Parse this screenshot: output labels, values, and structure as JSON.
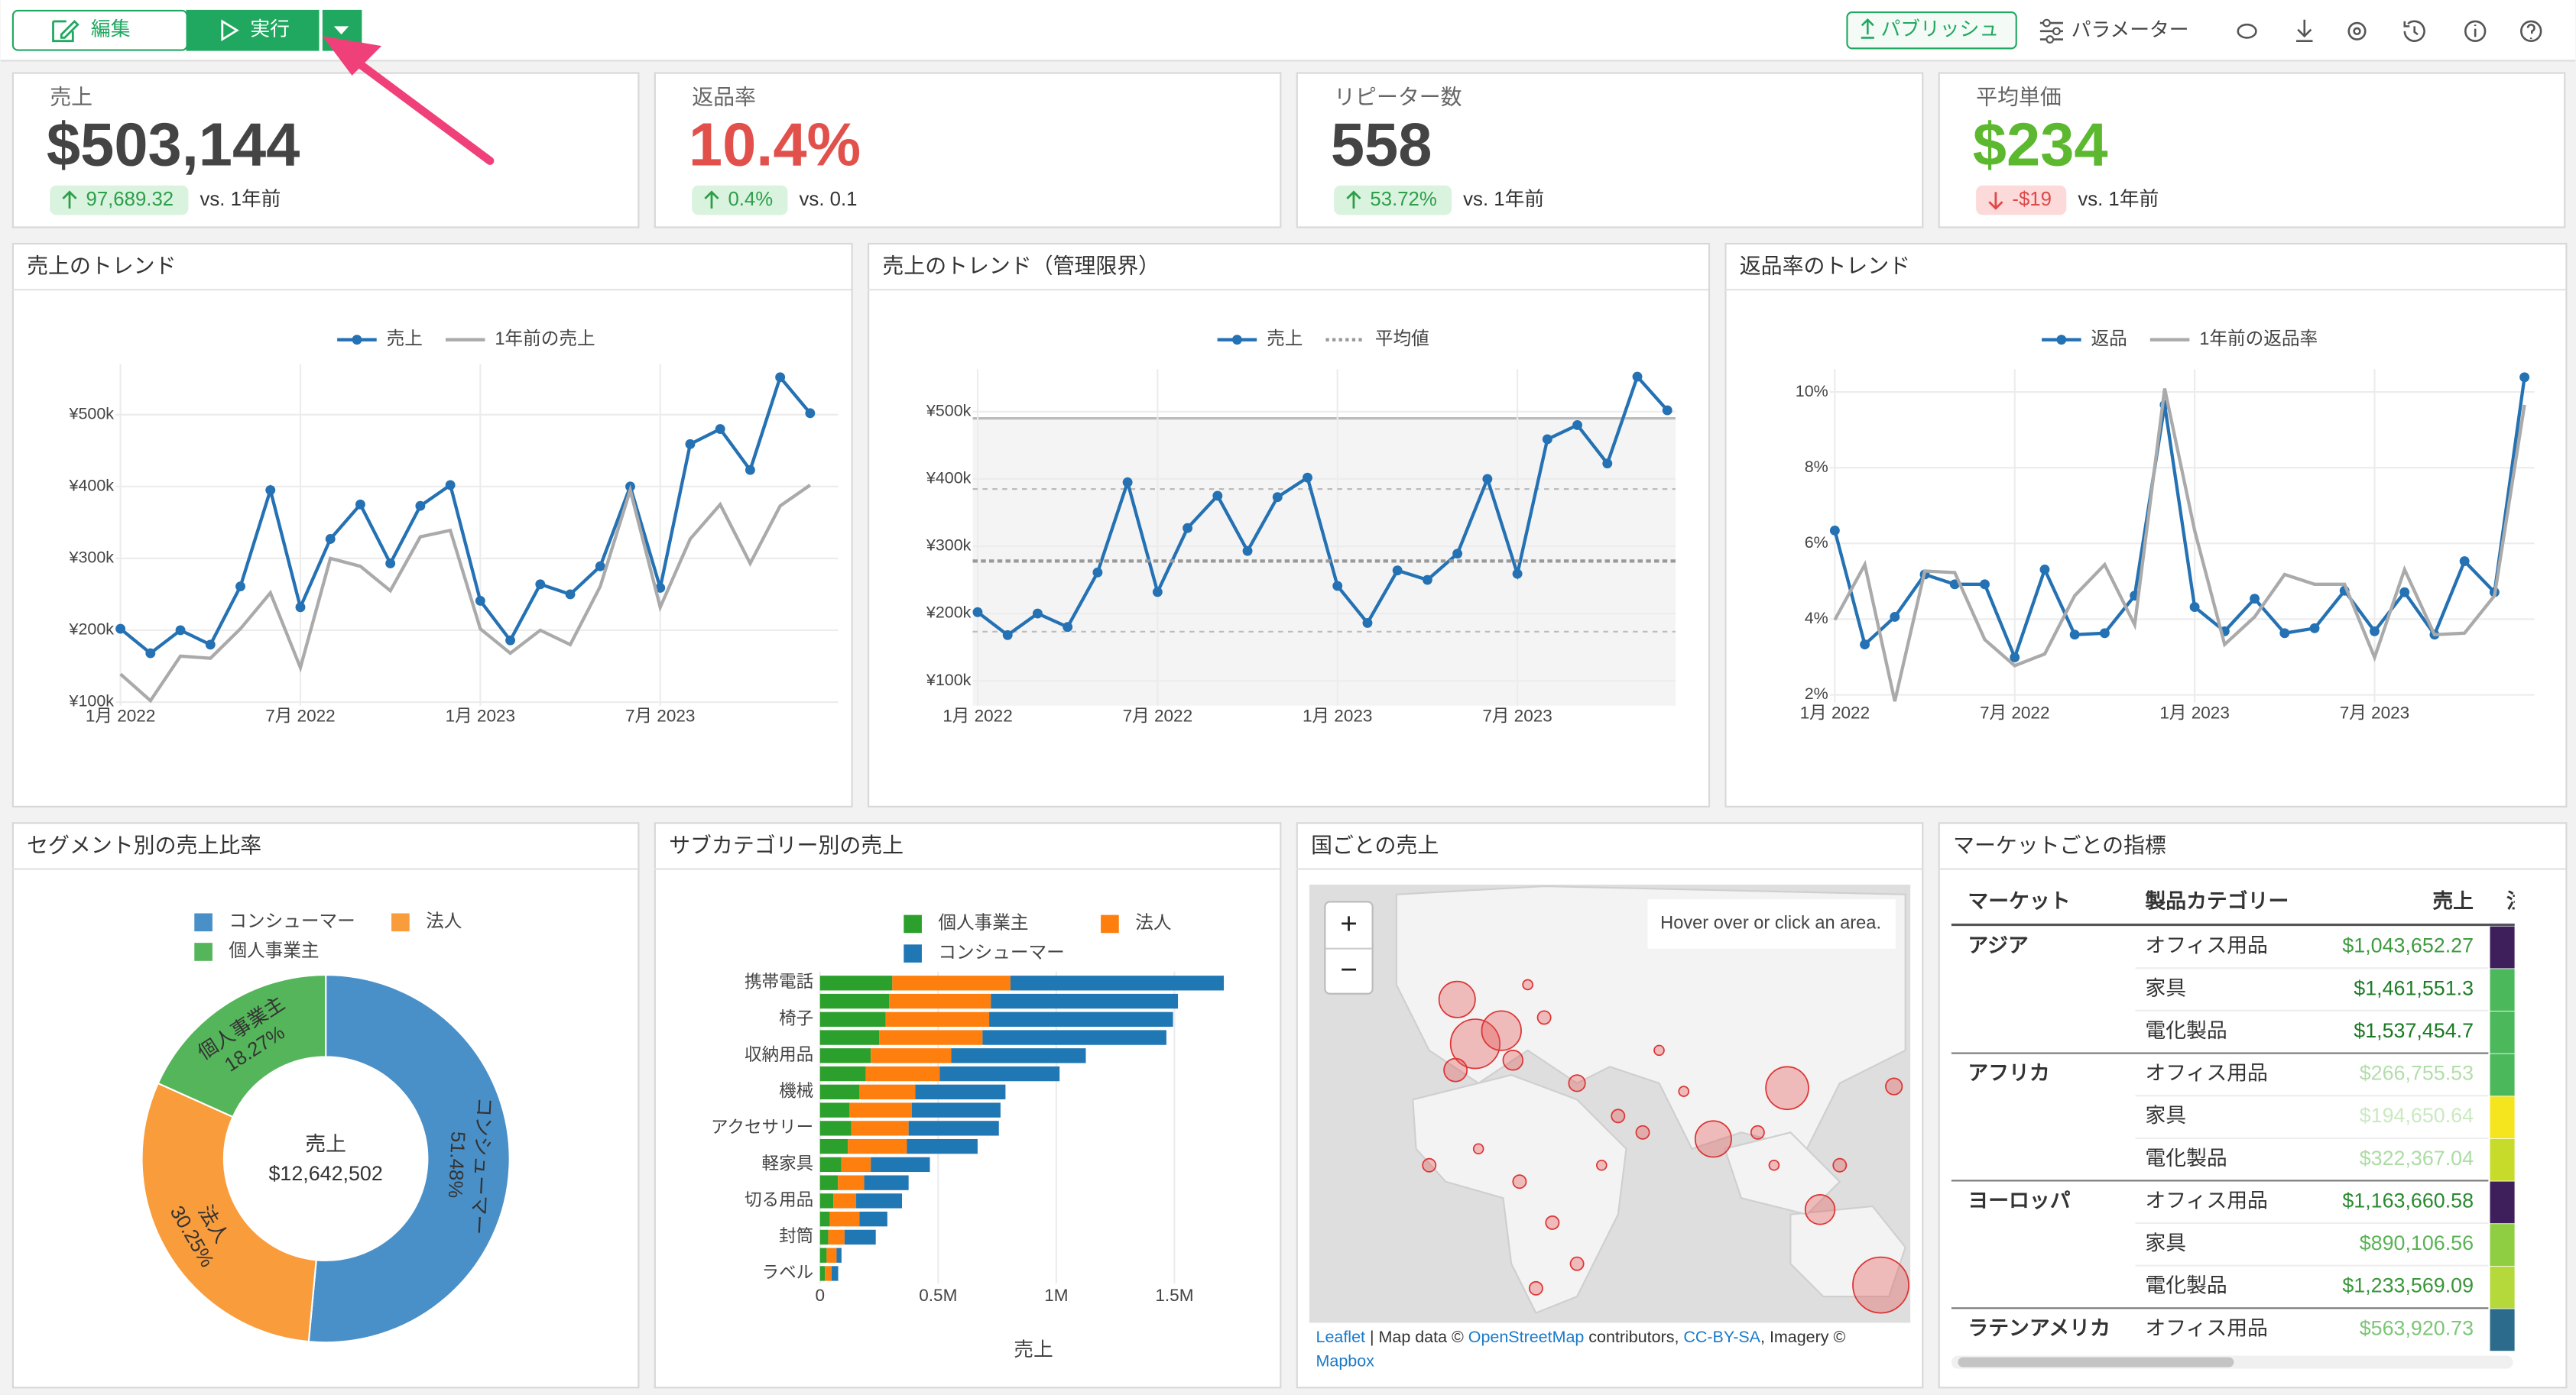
{
  "toolbar": {
    "edit": "編集",
    "run": "実行",
    "publish": "パブリッシュ",
    "parameters": "パラメーター"
  },
  "kpis": [
    {
      "title": "売上",
      "value": "$503,144",
      "color": "#444444",
      "change": "97,689.32",
      "direction": "up",
      "compare": "vs. 1年前"
    },
    {
      "title": "返品率",
      "value": "10.4%",
      "color": "#e2504c",
      "change": "0.4%",
      "direction": "up",
      "compare": "vs. 0.1"
    },
    {
      "title": "リピーター数",
      "value": "558",
      "color": "#444444",
      "change": "53.72%",
      "direction": "up",
      "compare": "vs. 1年前"
    },
    {
      "title": "平均単価",
      "value": "$234",
      "color": "#5cb82e",
      "change": "-$19",
      "direction": "down",
      "compare": "vs. 1年前"
    }
  ],
  "chart_data": [
    {
      "type": "line",
      "title": "売上のトレンド",
      "x": [
        "2022-01",
        "2022-02",
        "2022-03",
        "2022-04",
        "2022-05",
        "2022-06",
        "2022-07",
        "2022-08",
        "2022-09",
        "2022-10",
        "2022-11",
        "2022-12",
        "2023-01",
        "2023-02",
        "2023-03",
        "2023-04",
        "2023-05",
        "2023-06",
        "2023-07",
        "2023-08",
        "2023-09",
        "2023-10",
        "2023-11",
        "2023-12"
      ],
      "xticks": [
        {
          "value": "2022-01",
          "label": "1月 2022"
        },
        {
          "value": "2022-07",
          "label": "7月 2022"
        },
        {
          "value": "2023-01",
          "label": "1月 2023"
        },
        {
          "value": "2023-07",
          "label": "7月 2023"
        }
      ],
      "ylim": [
        95000,
        570000
      ],
      "yticks": [
        {
          "value": 100000,
          "label": "¥100k"
        },
        {
          "value": 200000,
          "label": "¥200k"
        },
        {
          "value": 300000,
          "label": "¥300k"
        },
        {
          "value": 400000,
          "label": "¥400k"
        },
        {
          "value": 500000,
          "label": "¥500k"
        }
      ],
      "grid": true,
      "series": [
        {
          "name": "売上",
          "color": "#2471b3",
          "markers": true,
          "values": [
            202000,
            168000,
            200000,
            180000,
            261000,
            395000,
            232000,
            327000,
            375000,
            293000,
            373000,
            402000,
            241000,
            186000,
            264000,
            250000,
            289000,
            400000,
            259000,
            459000,
            480000,
            423000,
            552000,
            502000
          ]
        },
        {
          "name": "1年前の売上",
          "color": "#aaaaaa",
          "markers": false,
          "values": [
            139000,
            102000,
            164000,
            161000,
            202000,
            252000,
            148000,
            300000,
            289000,
            255000,
            330000,
            339000,
            202000,
            168000,
            200000,
            180000,
            261000,
            395000,
            232000,
            327000,
            375000,
            293000,
            373000,
            402000
          ]
        }
      ]
    },
    {
      "type": "line",
      "title": "売上のトレンド（管理限界）",
      "x": [
        "2022-01",
        "2022-02",
        "2022-03",
        "2022-04",
        "2022-05",
        "2022-06",
        "2022-07",
        "2022-08",
        "2022-09",
        "2022-10",
        "2022-11",
        "2022-12",
        "2023-01",
        "2023-02",
        "2023-03",
        "2023-04",
        "2023-05",
        "2023-06",
        "2023-07",
        "2023-08",
        "2023-09",
        "2023-10",
        "2023-11",
        "2023-12"
      ],
      "xticks": [
        {
          "value": "2022-01",
          "label": "1月 2022"
        },
        {
          "value": "2022-07",
          "label": "7月 2022"
        },
        {
          "value": "2023-01",
          "label": "1月 2023"
        },
        {
          "value": "2023-07",
          "label": "7月 2023"
        }
      ],
      "ylim": [
        63000,
        563000
      ],
      "yticks": [
        {
          "value": 100000,
          "label": "¥100k"
        },
        {
          "value": 200000,
          "label": "¥200k"
        },
        {
          "value": 300000,
          "label": "¥300k"
        },
        {
          "value": 400000,
          "label": "¥400k"
        },
        {
          "value": 500000,
          "label": "¥500k"
        }
      ],
      "grid": true,
      "band": [
        63000,
        490000
      ],
      "control_lines": [
        173000,
        385000
      ],
      "series": [
        {
          "name": "売上",
          "color": "#2471b3",
          "markers": true,
          "values": [
            202000,
            168000,
            200000,
            180000,
            261000,
            395000,
            232000,
            327000,
            375000,
            293000,
            373000,
            402000,
            241000,
            186000,
            264000,
            250000,
            289000,
            400000,
            259000,
            459000,
            480000,
            423000,
            552000,
            502000
          ]
        },
        {
          "name": "平均値",
          "color": "#999999",
          "dash": true,
          "value": 278000
        }
      ]
    },
    {
      "type": "line",
      "title": "返品率のトレンド",
      "x": [
        "2022-01",
        "2022-02",
        "2022-03",
        "2022-04",
        "2022-05",
        "2022-06",
        "2022-07",
        "2022-08",
        "2022-09",
        "2022-10",
        "2022-11",
        "2022-12",
        "2023-01",
        "2023-02",
        "2023-03",
        "2023-04",
        "2023-05",
        "2023-06",
        "2023-07",
        "2023-08",
        "2023-09",
        "2023-10",
        "2023-11",
        "2023-12"
      ],
      "xticks": [
        {
          "value": "2022-01",
          "label": "1月 2022"
        },
        {
          "value": "2022-07",
          "label": "7月 2022"
        },
        {
          "value": "2023-01",
          "label": "1月 2023"
        },
        {
          "value": "2023-07",
          "label": "7月 2023"
        }
      ],
      "ylim": [
        1.8,
        10.6
      ],
      "yticks": [
        {
          "value": 2,
          "label": "2%"
        },
        {
          "value": 4,
          "label": "4%"
        },
        {
          "value": 6,
          "label": "6%"
        },
        {
          "value": 8,
          "label": "8%"
        },
        {
          "value": 10,
          "label": "10%"
        }
      ],
      "grid": true,
      "series": [
        {
          "name": "返品",
          "color": "#2471b3",
          "markers": true,
          "values": [
            6.34,
            3.33,
            4.06,
            5.18,
            4.92,
            4.92,
            2.99,
            5.31,
            3.59,
            3.63,
            4.62,
            9.66,
            4.32,
            3.68,
            4.54,
            3.63,
            3.76,
            4.75,
            3.68,
            4.71,
            3.59,
            5.53,
            4.71,
            10.39
          ]
        },
        {
          "name": "1年前の返品率",
          "color": "#aaaaaa",
          "markers": false,
          "values": [
            3.98,
            5.44,
            1.83,
            5.27,
            5.23,
            3.46,
            2.77,
            3.08,
            4.62,
            5.44,
            3.85,
            10.09,
            6.34,
            3.33,
            4.06,
            5.18,
            4.92,
            4.92,
            2.99,
            5.31,
            3.59,
            3.63,
            4.62,
            9.66
          ]
        }
      ]
    },
    {
      "type": "pie",
      "title": "セグメント別の売上比率",
      "categories": [
        "コンシューマー",
        "法人",
        "個人事業主"
      ],
      "values": [
        51.48,
        30.25,
        18.27
      ],
      "value_labels": [
        "51.48%",
        "30.25%",
        "18.27%"
      ],
      "colors": [
        "#4a90c8",
        "#f99c3c",
        "#55b55a"
      ],
      "center_label": "売上",
      "center_value": "$12,642,502"
    },
    {
      "type": "barh",
      "title": "サブカテゴリー別の売上",
      "categories": [
        "携帯電話",
        null,
        "椅子",
        null,
        "収納用品",
        null,
        "機械",
        null,
        "アクセサリー",
        null,
        "軽家具",
        null,
        "切る用品",
        null,
        "封筒",
        null,
        "ラベル"
      ],
      "xlim": [
        0,
        1800000
      ],
      "xticks": [
        0,
        {
          "value": 500000,
          "label": "0.5M"
        },
        {
          "value": 1000000,
          "label": "1M"
        },
        {
          "value": 1500000,
          "label": "1.5M"
        }
      ],
      "xlabel": "売上",
      "grid": true,
      "series": [
        {
          "name": "個人事業主",
          "color": "#2ca02c",
          "values": [
            306000,
            292000,
            278000,
            250000,
            215000,
            194000,
            167000,
            125000,
            132000,
            118000,
            90000,
            76000,
            56000,
            42000,
            35000,
            28000,
            21000
          ]
        },
        {
          "name": "法人",
          "color": "#ff7f0e",
          "values": [
            500000,
            431000,
            438000,
            438000,
            340000,
            313000,
            236000,
            264000,
            243000,
            250000,
            125000,
            111000,
            97000,
            125000,
            69000,
            42000,
            28000
          ]
        },
        {
          "name": "コンシューマー",
          "color": "#1f77b4",
          "values": [
            903000,
            792000,
            778000,
            778000,
            570000,
            507000,
            382000,
            375000,
            382000,
            299000,
            250000,
            188000,
            194000,
            118000,
            132000,
            21000,
            28000
          ]
        }
      ]
    }
  ],
  "map": {
    "title": "国ごとの売上",
    "hint": "Hover over or click an area.",
    "zoom_in": "+",
    "zoom_out": "−",
    "attribution": [
      "Leaflet",
      " | Map data © ",
      "OpenStreetMap",
      " contributors, ",
      "CC-BY-SA",
      ", Imagery ©"
    ],
    "attribution_2": "Mapbox"
  },
  "table": {
    "title": "マーケットごとの指標",
    "columns": [
      "マーケット",
      "製品カテゴリー",
      "売上",
      "注文"
    ],
    "groups": [
      {
        "market": "アジア",
        "rows": [
          {
            "category": "オフィス用品",
            "sales": "$1,043,652.27",
            "sales_color": "#3f9b3f",
            "cell_color": "#3e1f5c"
          },
          {
            "category": "家具",
            "sales": "$1,461,551.3",
            "sales_color": "#1e7d26",
            "cell_color": "#4cb85c"
          },
          {
            "category": "電化製品",
            "sales": "$1,537,454.7",
            "sales_color": "#1a7a22",
            "cell_color": "#4cb85c"
          }
        ]
      },
      {
        "market": "アフリカ",
        "rows": [
          {
            "category": "オフィス用品",
            "sales": "$266,755.53",
            "sales_color": "#b3deab",
            "cell_color": "#4cb85c"
          },
          {
            "category": "家具",
            "sales": "$194,650.64",
            "sales_color": "#c9eac0",
            "cell_color": "#f5e51f"
          },
          {
            "category": "電化製品",
            "sales": "$322,367.04",
            "sales_color": "#acdca4",
            "cell_color": "#c7dc2a"
          }
        ]
      },
      {
        "market": "ヨーロッパ",
        "rows": [
          {
            "category": "オフィス用品",
            "sales": "$1,163,660.58",
            "sales_color": "#2a8a30",
            "cell_color": "#3e1f5c"
          },
          {
            "category": "家具",
            "sales": "$890,106.56",
            "sales_color": "#59b354",
            "cell_color": "#8fce42"
          },
          {
            "category": "電化製品",
            "sales": "$1,233,569.09",
            "sales_color": "#3a963a",
            "cell_color": "#b5d93a"
          }
        ]
      },
      {
        "market": "ラテンアメリカ",
        "rows": [
          {
            "category": "オフィス用品",
            "sales": "$563,920.73",
            "sales_color": "#7cc676",
            "cell_color": "#2d6b8c"
          }
        ]
      }
    ]
  }
}
